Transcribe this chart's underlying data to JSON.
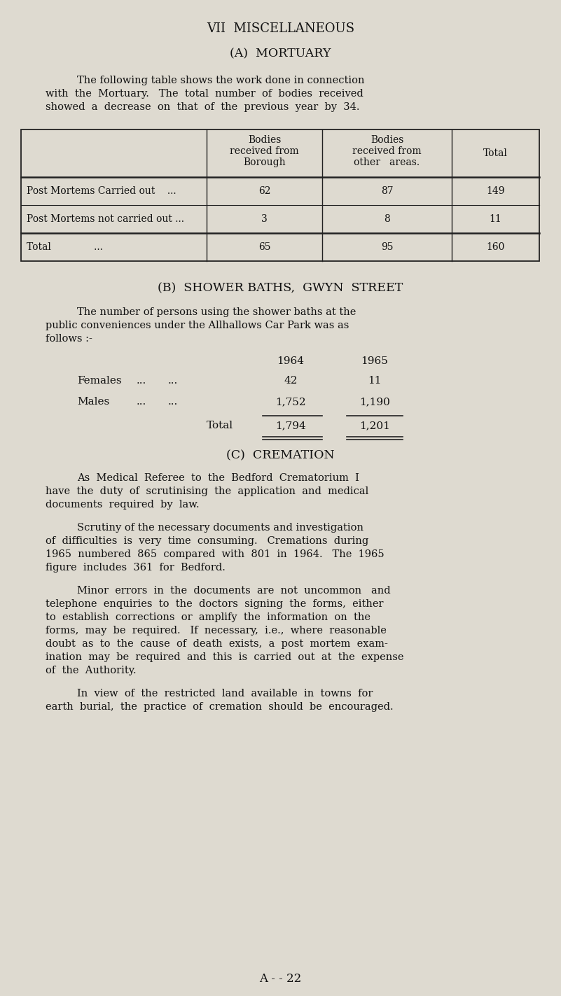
{
  "bg_color": "#dedad0",
  "text_color": "#111111",
  "page_title": "VII  MISCELLANEOUS",
  "section_a_title": "(A)  MORTUARY",
  "section_a_para_line1": "The following table shows the work done in connection",
  "section_a_para_line2": "with  the  Mortuary.   The  total  number  of  bodies  received",
  "section_a_para_line3": "showed  a  decrease  on  that  of  the  previous  year  by  34.",
  "table_col2_header": "Bodies\nreceived from\nBorough",
  "table_col3_header": "Bodies\nreceived from\nother   areas.",
  "table_col4_header": "Total",
  "row1_label": "Post Mortems Carried out    ...",
  "row1_vals": [
    "62",
    "87",
    "149"
  ],
  "row2_label": "Post Mortems not carried out ...",
  "row2_vals": [
    "3",
    "8",
    "11"
  ],
  "row3_label": "Total              ...",
  "row3_vals": [
    "65",
    "95",
    "160"
  ],
  "section_b_title": "(B)  SHOWER BATHS,  GWYN  STREET",
  "section_b_line1": "The number of persons using the shower baths at the",
  "section_b_line2": "public conveniences under the Allhallows Car Park was as",
  "section_b_line3": "follows :-",
  "year1": "1964",
  "year2": "1965",
  "females_label": "Females",
  "females_dots": "...        ...",
  "females_1964": "42",
  "females_1965": "11",
  "males_label": "Males",
  "males_dots": "...        ...",
  "males_1964": "1,752",
  "males_1965": "1,190",
  "shower_total": "Total",
  "shower_total_1964": "1,794",
  "shower_total_1965": "1,201",
  "section_c_title": "(C)  CREMATION",
  "section_c_para1_lines": [
    "As  Medical  Referee  to  the  Bedford  Crematorium  I",
    "have  the  duty  of  scrutinising  the  application  and  medical",
    "documents  required  by  law."
  ],
  "section_c_para2_lines": [
    "Scrutiny of the necessary documents and investigation",
    "of  difficulties  is  very  time  consuming.   Cremations  during",
    "1965  numbered  865  compared  with  801  in  1964.   The  1965",
    "figure  includes  361  for  Bedford."
  ],
  "section_c_para3_lines": [
    "Minor  errors  in  the  documents  are  not  uncommon   and",
    "telephone  enquiries  to  the  doctors  signing  the  forms,  either",
    "to  establish  corrections  or  amplify  the  information  on  the",
    "forms,  may  be  required.   If  necessary,  i.e.,  where  reasonable",
    "doubt  as  to  the  cause  of  death  exists,  a  post  mortem  exam-",
    "ination  may  be  required  and  this  is  carried  out  at  the  expense",
    "of  the  Authority."
  ],
  "section_c_para4_lines": [
    "In  view  of  the  restricted  land  available  in  towns  for",
    "earth  burial,  the  practice  of  cremation  should  be  encouraged."
  ],
  "footer": "A - - 22"
}
